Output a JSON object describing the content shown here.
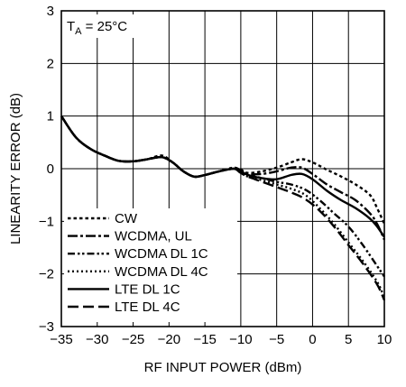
{
  "chart_data": {
    "type": "line",
    "xlabel": "RF INPUT POWER (dBm)",
    "ylabel": "LINEARITY ERROR (dB)",
    "xlim": [
      -35,
      10
    ],
    "ylim": [
      -3,
      3
    ],
    "xticks": [
      -35,
      -30,
      -25,
      -20,
      -15,
      -10,
      -5,
      0,
      5,
      10
    ],
    "yticks": [
      -3,
      -2,
      -1,
      0,
      1,
      2,
      3
    ],
    "xtick_labels": [
      "−35",
      "−30",
      "−25",
      "−20",
      "−15",
      "−10",
      "−5",
      "0",
      "5",
      "10"
    ],
    "ytick_labels": [
      "−3",
      "−2",
      "−1",
      "0",
      "1",
      "2",
      "3"
    ],
    "grid": true,
    "legend_position": "bottom-left",
    "annotation": {
      "text": "T",
      "sub": "A",
      "rest": " = 25°C"
    },
    "series": [
      {
        "name": "CW",
        "dash": "dotted-short",
        "x": [
          -35,
          -33,
          -31,
          -29,
          -27,
          -25,
          -23,
          -21,
          -19.5,
          -18,
          -16.5,
          -15,
          -13,
          -11,
          -10,
          -9,
          -7,
          -5,
          -3,
          -1.5,
          0,
          2,
          4,
          6,
          8,
          9,
          10
        ],
        "y": [
          1.0,
          0.6,
          0.38,
          0.25,
          0.15,
          0.14,
          0.18,
          0.25,
          0.12,
          -0.05,
          -0.15,
          -0.12,
          -0.05,
          0.0,
          -0.02,
          -0.08,
          -0.05,
          0.02,
          0.12,
          0.18,
          0.12,
          -0.02,
          -0.15,
          -0.3,
          -0.5,
          -0.75,
          -1.05
        ]
      },
      {
        "name": "WCDMA, UL",
        "dash": "dash-dot",
        "x": [
          -35,
          -33,
          -31,
          -29,
          -27,
          -25,
          -23,
          -21,
          -19.5,
          -18,
          -16.5,
          -15,
          -13,
          -11,
          -10,
          -9,
          -7,
          -5,
          -3,
          -1.5,
          0,
          2,
          4,
          6,
          8,
          9,
          10
        ],
        "y": [
          1.0,
          0.6,
          0.38,
          0.25,
          0.15,
          0.14,
          0.18,
          0.22,
          0.12,
          -0.05,
          -0.15,
          -0.12,
          -0.05,
          0.02,
          -0.03,
          -0.1,
          -0.1,
          -0.05,
          0.02,
          0.02,
          -0.1,
          -0.3,
          -0.45,
          -0.6,
          -0.85,
          -1.05,
          -1.35
        ]
      },
      {
        "name": "WCDMA DL 1C",
        "dash": "dash-dot-dot",
        "x": [
          -35,
          -33,
          -31,
          -29,
          -27,
          -25,
          -23,
          -21,
          -19.5,
          -18,
          -16.5,
          -15,
          -13,
          -11,
          -10,
          -9,
          -7,
          -5,
          -3,
          -1,
          1,
          3,
          5,
          7,
          9,
          10
        ],
        "y": [
          1.0,
          0.6,
          0.38,
          0.25,
          0.15,
          0.14,
          0.18,
          0.22,
          0.12,
          -0.05,
          -0.15,
          -0.12,
          -0.05,
          0.0,
          -0.05,
          -0.12,
          -0.18,
          -0.25,
          -0.3,
          -0.4,
          -0.6,
          -0.85,
          -1.1,
          -1.45,
          -1.85,
          -2.05
        ]
      },
      {
        "name": "WCDMA DL 4C",
        "dash": "dotted",
        "x": [
          -35,
          -33,
          -31,
          -29,
          -27,
          -25,
          -23,
          -21,
          -19.5,
          -18,
          -16.5,
          -15,
          -13,
          -11,
          -10,
          -9,
          -7,
          -5,
          -3,
          -1,
          1,
          3,
          5,
          7,
          9,
          10
        ],
        "y": [
          1.0,
          0.6,
          0.38,
          0.25,
          0.15,
          0.14,
          0.18,
          0.22,
          0.12,
          -0.05,
          -0.15,
          -0.12,
          -0.05,
          0.0,
          -0.08,
          -0.15,
          -0.22,
          -0.3,
          -0.38,
          -0.5,
          -0.75,
          -1.05,
          -1.4,
          -1.75,
          -2.15,
          -2.45
        ]
      },
      {
        "name": "LTE DL 1C",
        "dash": "solid",
        "x": [
          -35,
          -33,
          -31,
          -29,
          -27,
          -25,
          -23,
          -21,
          -19.5,
          -18,
          -16.5,
          -15,
          -13,
          -11,
          -10,
          -9,
          -7,
          -5,
          -3,
          -1.5,
          0,
          2,
          4,
          6,
          8,
          9,
          10
        ],
        "y": [
          1.0,
          0.6,
          0.38,
          0.25,
          0.15,
          0.14,
          0.18,
          0.22,
          0.12,
          -0.05,
          -0.15,
          -0.12,
          -0.05,
          0.0,
          -0.05,
          -0.12,
          -0.18,
          -0.2,
          -0.12,
          -0.1,
          -0.2,
          -0.42,
          -0.6,
          -0.75,
          -0.95,
          -1.1,
          -1.3
        ]
      },
      {
        "name": "LTE DL 4C",
        "dash": "long-dash",
        "x": [
          -35,
          -33,
          -31,
          -29,
          -27,
          -25,
          -23,
          -21,
          -19.5,
          -18,
          -16.5,
          -15,
          -13,
          -11,
          -10,
          -9,
          -7,
          -5,
          -3,
          -1,
          1,
          3,
          5,
          7,
          9,
          10
        ],
        "y": [
          1.0,
          0.6,
          0.38,
          0.25,
          0.15,
          0.14,
          0.18,
          0.22,
          0.12,
          -0.05,
          -0.15,
          -0.12,
          -0.05,
          0.0,
          -0.08,
          -0.15,
          -0.25,
          -0.35,
          -0.45,
          -0.58,
          -0.8,
          -1.1,
          -1.45,
          -1.8,
          -2.2,
          -2.5
        ]
      }
    ]
  }
}
